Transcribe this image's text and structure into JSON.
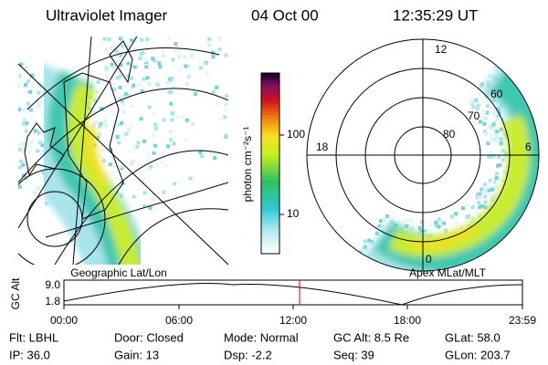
{
  "header": {
    "instrument": "Ultraviolet Imager",
    "date": "04 Oct 00",
    "time": "12:35:29 UT"
  },
  "left_panel": {
    "label": "Geographic Lat/Lon"
  },
  "right_panel": {
    "label": "Apex MLat/MLT",
    "mlt_labels": [
      "12",
      "18",
      "6",
      "0"
    ],
    "lat_labels": [
      "80",
      "70",
      "60"
    ]
  },
  "colorbar": {
    "unit": "photon cm⁻²s⁻¹",
    "ticks": [
      "100",
      "10"
    ]
  },
  "altitude": {
    "axis_label": "GC Alt",
    "ticks": [
      "9.0",
      "1.8"
    ],
    "times": [
      "00:00",
      "06:00",
      "12:00",
      "18:00",
      "23:59"
    ]
  },
  "footer": {
    "rows": [
      [
        "Flt: LBHL",
        "Door: Closed",
        "Mode: Normal",
        "GC Alt: 8.5 Re",
        "GLat: 58.0"
      ],
      [
        "IP: 36.0",
        "Gain: 13",
        "Dsp:  -2.2",
        "Seq: 39",
        "GLon: 203.7"
      ]
    ]
  }
}
